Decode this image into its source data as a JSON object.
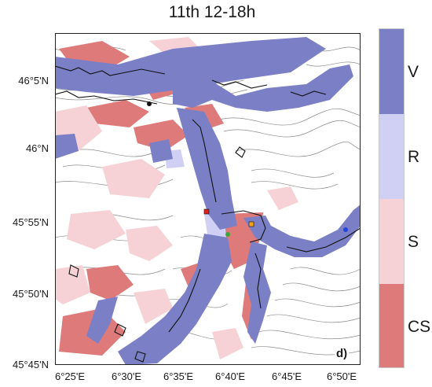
{
  "title": "11th 12-18h",
  "panel_label": "d)",
  "latitude_labels": [
    "46°5'N",
    "46°N",
    "45°55'N",
    "45°50'N",
    "45°45'N"
  ],
  "longitude_labels": [
    "6°25'E",
    "6°30'E",
    "6°35'E",
    "6°40'E",
    "6°45'E",
    "6°50'E"
  ],
  "legend": {
    "items": [
      {
        "label": "V",
        "color": "#7a7fc6"
      },
      {
        "label": "R",
        "color": "#cfd0f4"
      },
      {
        "label": "S",
        "color": "#f6d2d6"
      },
      {
        "label": "CS",
        "color": "#de7a7a"
      }
    ]
  },
  "markers": [
    {
      "name": "red-marker",
      "color": "#e0201c"
    },
    {
      "name": "green-marker",
      "color": "#3fa33f"
    },
    {
      "name": "orange-marker",
      "color": "#f4a21c"
    },
    {
      "name": "blue-marker",
      "color": "#2244dd"
    },
    {
      "name": "black-marker",
      "color": "#111111"
    }
  ],
  "colors": {
    "contour": "#8c8c8c",
    "outline": "#111111"
  }
}
